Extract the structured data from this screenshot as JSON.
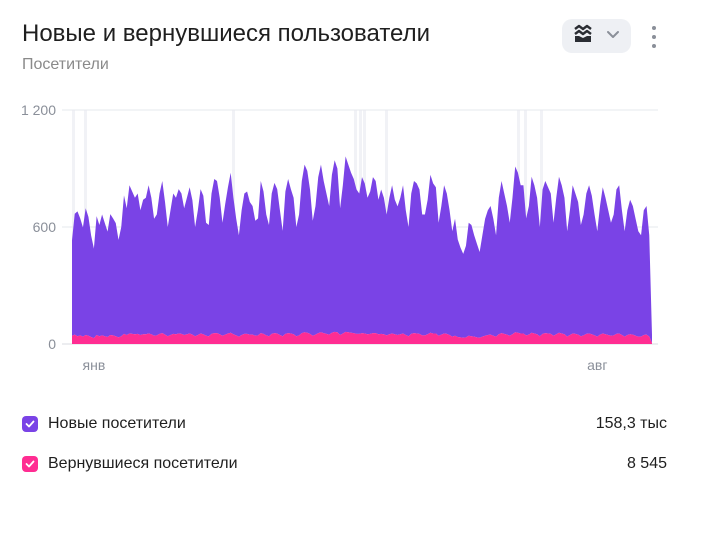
{
  "header": {
    "title": "Новые и вернувшиеся пользователи",
    "subtitle": "Посетители"
  },
  "toolbar": {
    "chart_type_icon": "stacked-area-icon",
    "dropdown_icon": "chevron-down-icon",
    "menu_icon": "more-vertical-icon"
  },
  "legend": {
    "items": [
      {
        "label": "Новые посетители",
        "value": "158,3 тыс",
        "color": "#7a43e6",
        "checked": true
      },
      {
        "label": "Вернувшиеся посетители",
        "value": "8 545",
        "color": "#ff2d92",
        "checked": true
      }
    ]
  },
  "chart_data": {
    "type": "area",
    "stacked": true,
    "y_ticks": [
      0,
      600,
      1200
    ],
    "y_tick_labels": [
      "0",
      "600",
      "1 200"
    ],
    "ylim": [
      0,
      1200
    ],
    "x_tick_labels": [
      "янв",
      "авг"
    ],
    "x_tick_positions": [
      8,
      192
    ],
    "grid": true,
    "series": [
      {
        "name": "Новые посетители",
        "color": "#7a43e6",
        "values": [
          490,
          620,
          640,
          600,
          560,
          650,
          610,
          520,
          460,
          610,
          570,
          620,
          580,
          540,
          620,
          600,
          580,
          500,
          560,
          710,
          650,
          760,
          730,
          700,
          720,
          640,
          690,
          700,
          760,
          700,
          600,
          620,
          720,
          780,
          680,
          560,
          640,
          720,
          700,
          740,
          720,
          650,
          700,
          750,
          690,
          560,
          640,
          740,
          710,
          580,
          570,
          720,
          790,
          780,
          700,
          580,
          670,
          750,
          820,
          700,
          600,
          520,
          640,
          720,
          730,
          680,
          660,
          590,
          600,
          780,
          730,
          620,
          570,
          720,
          770,
          740,
          640,
          540,
          730,
          790,
          740,
          700,
          560,
          620,
          780,
          860,
          830,
          740,
          590,
          660,
          800,
          860,
          780,
          720,
          660,
          810,
          880,
          840,
          650,
          760,
          900,
          860,
          820,
          790,
          740,
          720,
          800,
          770,
          700,
          730,
          800,
          780,
          690,
          740,
          700,
          620,
          700,
          760,
          690,
          660,
          700,
          760,
          640,
          560,
          720,
          780,
          770,
          740,
          620,
          620,
          690,
          810,
          770,
          750,
          580,
          660,
          760,
          720,
          640,
          540,
          600,
          500,
          460,
          430,
          470,
          580,
          570,
          520,
          480,
          440,
          520,
          600,
          640,
          660,
          600,
          520,
          700,
          780,
          720,
          660,
          580,
          700,
          850,
          820,
          760,
          760,
          600,
          660,
          800,
          760,
          700,
          560,
          740,
          780,
          750,
          720,
          580,
          700,
          800,
          760,
          700,
          540,
          640,
          760,
          720,
          680,
          570,
          620,
          720,
          760,
          710,
          620,
          540,
          660,
          750,
          700,
          640,
          580,
          620,
          740,
          760,
          640,
          540,
          640,
          690,
          660,
          600,
          540,
          520,
          640,
          660,
          520,
          40
        ]
      },
      {
        "name": "Вернувшиеся посетители",
        "color": "#ff2d92",
        "values": [
          42,
          48,
          40,
          44,
          38,
          46,
          42,
          36,
          30,
          46,
          40,
          44,
          40,
          36,
          46,
          44,
          40,
          34,
          40,
          52,
          46,
          54,
          52,
          50,
          52,
          46,
          50,
          50,
          54,
          50,
          42,
          44,
          52,
          56,
          48,
          40,
          46,
          52,
          50,
          54,
          52,
          46,
          50,
          54,
          48,
          40,
          46,
          54,
          50,
          42,
          40,
          52,
          56,
          56,
          50,
          42,
          48,
          54,
          58,
          50,
          44,
          38,
          46,
          52,
          52,
          48,
          48,
          42,
          44,
          56,
          52,
          44,
          40,
          52,
          56,
          54,
          46,
          40,
          52,
          56,
          54,
          50,
          40,
          44,
          56,
          60,
          58,
          52,
          42,
          48,
          56,
          60,
          56,
          52,
          48,
          58,
          62,
          60,
          46,
          54,
          62,
          60,
          58,
          56,
          52,
          52,
          56,
          54,
          50,
          52,
          56,
          56,
          50,
          52,
          50,
          44,
          50,
          54,
          50,
          46,
          50,
          54,
          46,
          40,
          52,
          56,
          54,
          52,
          44,
          44,
          50,
          58,
          54,
          54,
          42,
          48,
          54,
          52,
          46,
          38,
          42,
          36,
          34,
          32,
          34,
          42,
          40,
          38,
          34,
          32,
          38,
          42,
          46,
          48,
          42,
          38,
          50,
          56,
          52,
          48,
          42,
          50,
          60,
          58,
          54,
          54,
          44,
          48,
          58,
          54,
          50,
          40,
          52,
          56,
          54,
          52,
          42,
          50,
          58,
          54,
          50,
          38,
          46,
          54,
          52,
          48,
          40,
          44,
          52,
          54,
          50,
          44,
          38,
          48,
          54,
          50,
          46,
          42,
          44,
          52,
          54,
          46,
          38,
          46,
          50,
          48,
          42,
          38,
          38,
          46,
          48,
          38,
          6
        ]
      }
    ]
  }
}
